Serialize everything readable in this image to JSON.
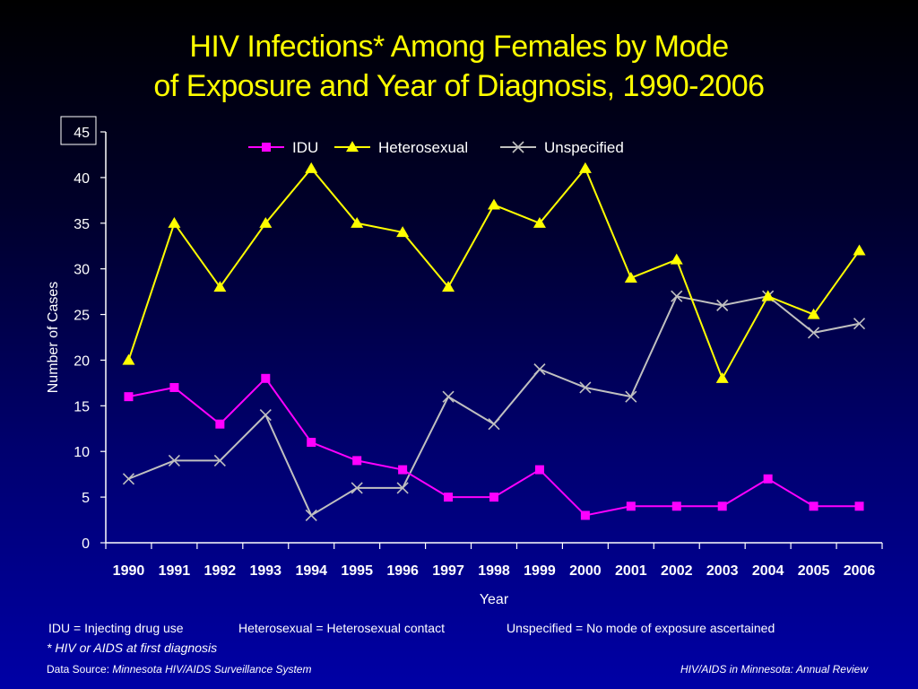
{
  "title": {
    "line1": "HIV Infections* Among Females by Mode",
    "line2": "of Exposure and Year of Diagnosis, 1990-2006"
  },
  "chart_data": {
    "type": "line",
    "title": "HIV Infections* Among Females by Mode of Exposure and Year of Diagnosis, 1990-2006",
    "xlabel": "Year",
    "ylabel": "Number of Cases",
    "ylim": [
      0,
      45
    ],
    "yticks": [
      0,
      5,
      10,
      15,
      20,
      25,
      30,
      35,
      40,
      45
    ],
    "grid": false,
    "legend_position": "top",
    "categories": [
      "1990",
      "1991",
      "1992",
      "1993",
      "1994",
      "1995",
      "1996",
      "1997",
      "1998",
      "1999",
      "2000",
      "2001",
      "2002",
      "2003",
      "2004",
      "2005",
      "2006"
    ],
    "series": [
      {
        "name": "IDU",
        "color": "#ff00ff",
        "marker": "square",
        "values": [
          16,
          17,
          13,
          18,
          11,
          9,
          8,
          5,
          5,
          8,
          3,
          4,
          4,
          4,
          7,
          4,
          4
        ]
      },
      {
        "name": "Heterosexual",
        "color": "#ffff00",
        "marker": "triangle",
        "values": [
          20,
          35,
          28,
          35,
          41,
          35,
          34,
          28,
          37,
          35,
          41,
          29,
          31,
          18,
          27,
          25,
          32
        ]
      },
      {
        "name": "Unspecified",
        "color": "#c0c0c0",
        "marker": "x",
        "values": [
          7,
          9,
          9,
          14,
          3,
          6,
          6,
          16,
          13,
          19,
          17,
          16,
          27,
          26,
          27,
          23,
          24
        ]
      }
    ]
  },
  "notes": {
    "idu": "IDU = Injecting drug use",
    "hetero": "Heterosexual = Heterosexual contact",
    "unspecified": "Unspecified = No mode of exposure ascertained",
    "footnote": "* HIV or AIDS at first diagnosis"
  },
  "source": {
    "label": "Data Source: ",
    "name": "Minnesota HIV/AIDS Surveillance System",
    "right": "HIV/AIDS in Minnesota: Annual Review"
  }
}
